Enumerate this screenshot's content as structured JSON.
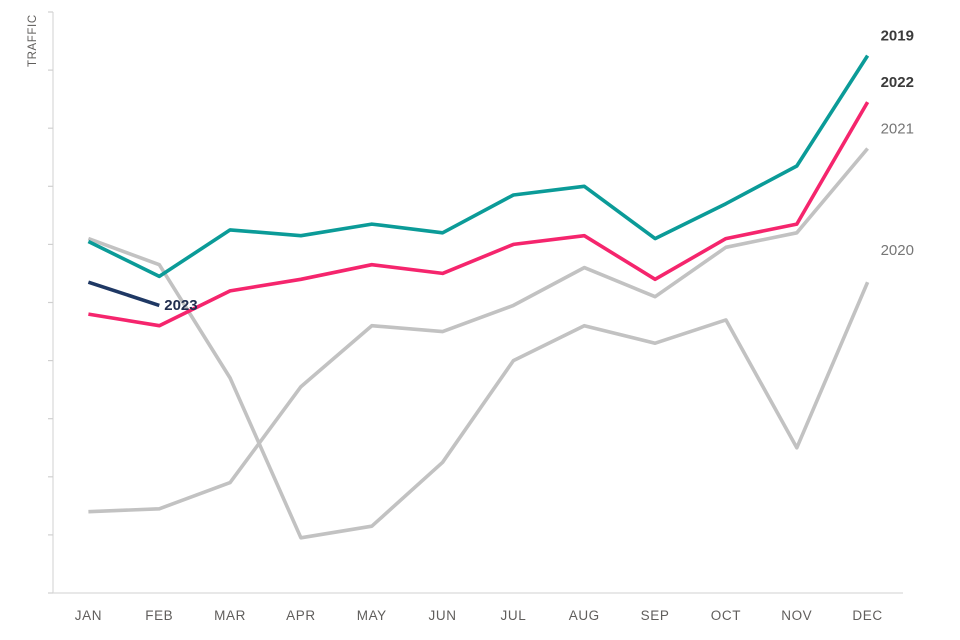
{
  "colors": {
    "background": "#FFFFFF",
    "axis": "#D9D9D9",
    "tick": "#D0D0D0",
    "axis_text": "#605E5C"
  },
  "chart_data": {
    "type": "line",
    "title": "",
    "ylabel": "TRAFFIC",
    "xlabel": "",
    "categories": [
      "JAN",
      "FEB",
      "MAR",
      "APR",
      "MAY",
      "JUN",
      "JUL",
      "AUG",
      "SEP",
      "OCT",
      "NOV",
      "DEC"
    ],
    "y_axis": {
      "min": 0,
      "max": 100,
      "tick_count": 11,
      "tick_labels_visible": false
    },
    "grid": false,
    "legend_position": "inline series end labels",
    "series": [
      {
        "name": "2019",
        "color": "#0B9B98",
        "label_color": "#3B3B3B",
        "label_bold": true,
        "values": [
          60.5,
          54.5,
          62.5,
          61.5,
          63.5,
          62,
          68.5,
          70,
          61,
          67,
          73.5,
          92.5
        ]
      },
      {
        "name": "2022",
        "color": "#F5256D",
        "label_color": "#3B3B3B",
        "label_bold": true,
        "values": [
          48,
          46,
          52,
          54,
          56.5,
          55,
          60,
          61.5,
          54,
          61,
          63.5,
          84.5
        ]
      },
      {
        "name": "2021",
        "color": "#C2C2C2",
        "label_color": "#767676",
        "label_bold": false,
        "values": [
          14,
          14.5,
          19,
          35.5,
          46,
          45,
          49.5,
          56,
          51,
          59.5,
          62,
          76.5
        ]
      },
      {
        "name": "2020",
        "color": "#C2C2C2",
        "label_color": "#767676",
        "label_bold": false,
        "label_dy": -27,
        "values": [
          61,
          56.5,
          37,
          9.5,
          11.5,
          22.5,
          40,
          46,
          43,
          47,
          25,
          53.5
        ]
      },
      {
        "name": "2023",
        "color": "#1F3864",
        "label_color": "#222E4E",
        "label_bold": true,
        "values": [
          53.5,
          49.5
        ]
      }
    ]
  }
}
